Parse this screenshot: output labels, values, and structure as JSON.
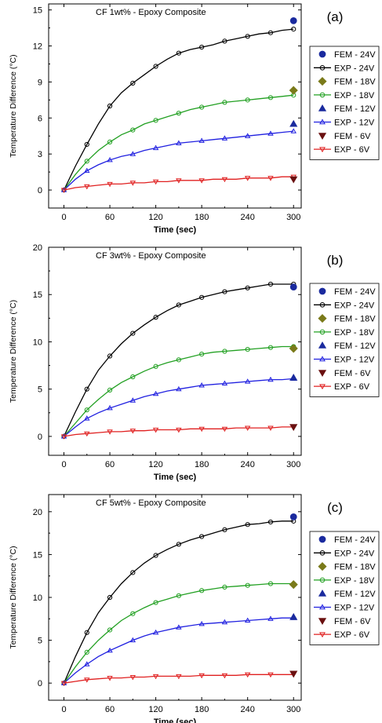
{
  "chart_data": [
    {
      "type": "line",
      "title": "CF 1wt% - Epoxy Composite",
      "panel_label": "(a)",
      "xlabel": "Time (sec)",
      "ylabel": "Temperature Difference (°C)",
      "xlim": [
        -20,
        310
      ],
      "ylim": [
        -1.5,
        15.5
      ],
      "xticks": [
        0,
        60,
        120,
        180,
        240,
        300
      ],
      "yticks": [
        0,
        3,
        6,
        9,
        12,
        15
      ],
      "grid": false,
      "legend_position": "right",
      "series": [
        {
          "name": "EXP - 24V",
          "kind": "exp",
          "color": "#000000",
          "marker": "circle",
          "x": [
            0,
            15,
            30,
            45,
            60,
            75,
            90,
            105,
            120,
            135,
            150,
            165,
            180,
            195,
            210,
            225,
            240,
            255,
            270,
            285,
            300
          ],
          "y": [
            0,
            2.0,
            3.8,
            5.5,
            7.0,
            8.1,
            8.9,
            9.6,
            10.3,
            10.9,
            11.4,
            11.7,
            11.9,
            12.1,
            12.4,
            12.6,
            12.8,
            13.0,
            13.1,
            13.3,
            13.4
          ]
        },
        {
          "name": "EXP - 18V",
          "kind": "exp",
          "color": "#22a022",
          "marker": "circle",
          "x": [
            0,
            15,
            30,
            45,
            60,
            75,
            90,
            105,
            120,
            135,
            150,
            165,
            180,
            195,
            210,
            225,
            240,
            255,
            270,
            285,
            300
          ],
          "y": [
            0,
            1.3,
            2.4,
            3.3,
            4.0,
            4.6,
            5.0,
            5.5,
            5.8,
            6.1,
            6.4,
            6.7,
            6.9,
            7.1,
            7.3,
            7.4,
            7.5,
            7.6,
            7.7,
            7.8,
            7.9
          ]
        },
        {
          "name": "EXP - 12V",
          "kind": "exp",
          "color": "#2020e0",
          "marker": "triangle-up",
          "x": [
            0,
            15,
            30,
            45,
            60,
            75,
            90,
            105,
            120,
            135,
            150,
            165,
            180,
            195,
            210,
            225,
            240,
            255,
            270,
            285,
            300
          ],
          "y": [
            0,
            0.9,
            1.6,
            2.1,
            2.5,
            2.8,
            3.0,
            3.3,
            3.5,
            3.7,
            3.9,
            4.0,
            4.1,
            4.2,
            4.3,
            4.4,
            4.5,
            4.6,
            4.7,
            4.8,
            4.9
          ]
        },
        {
          "name": "EXP -  6V",
          "kind": "exp",
          "color": "#e02020",
          "marker": "triangle-down",
          "x": [
            0,
            15,
            30,
            45,
            60,
            75,
            90,
            105,
            120,
            135,
            150,
            165,
            180,
            195,
            210,
            225,
            240,
            255,
            270,
            285,
            300
          ],
          "y": [
            0,
            0.2,
            0.3,
            0.4,
            0.5,
            0.5,
            0.6,
            0.6,
            0.7,
            0.7,
            0.8,
            0.8,
            0.8,
            0.9,
            0.9,
            0.9,
            1.0,
            1.0,
            1.0,
            1.1,
            1.1
          ]
        },
        {
          "name": "FEM - 24V",
          "kind": "fem",
          "color": "#1a2a9e",
          "marker": "circle",
          "x": [
            300
          ],
          "y": [
            14.1
          ]
        },
        {
          "name": "FEM - 18V",
          "kind": "fem",
          "color": "#7a7a1a",
          "marker": "diamond",
          "x": [
            300
          ],
          "y": [
            8.3
          ]
        },
        {
          "name": "FEM - 12V",
          "kind": "fem",
          "color": "#1a2a9e",
          "marker": "triangle-up",
          "x": [
            300
          ],
          "y": [
            5.5
          ]
        },
        {
          "name": "FEM -  6V",
          "kind": "fem",
          "color": "#6a1010",
          "marker": "triangle-down",
          "x": [
            300
          ],
          "y": [
            0.9
          ]
        }
      ]
    },
    {
      "type": "line",
      "title": "CF 3wt% - Epoxy Composite",
      "panel_label": "(b)",
      "xlabel": "Time (sec)",
      "ylabel": "Temperature Difference (°C)",
      "xlim": [
        -20,
        310
      ],
      "ylim": [
        -2,
        20
      ],
      "xticks": [
        0,
        60,
        120,
        180,
        240,
        300
      ],
      "yticks": [
        0,
        5,
        10,
        15,
        20
      ],
      "grid": false,
      "legend_position": "right",
      "series": [
        {
          "name": "EXP - 24V",
          "kind": "exp",
          "color": "#000000",
          "marker": "circle",
          "x": [
            0,
            15,
            30,
            45,
            60,
            75,
            90,
            105,
            120,
            135,
            150,
            165,
            180,
            195,
            210,
            225,
            240,
            255,
            270,
            285,
            300
          ],
          "y": [
            0,
            2.6,
            5.0,
            7.0,
            8.5,
            9.8,
            10.9,
            11.8,
            12.6,
            13.3,
            13.9,
            14.3,
            14.7,
            15.0,
            15.3,
            15.5,
            15.7,
            15.9,
            16.1,
            16.1,
            16.1
          ]
        },
        {
          "name": "EXP - 18V",
          "kind": "exp",
          "color": "#22a022",
          "marker": "circle",
          "x": [
            0,
            15,
            30,
            45,
            60,
            75,
            90,
            105,
            120,
            135,
            150,
            165,
            180,
            195,
            210,
            225,
            240,
            255,
            270,
            285,
            300
          ],
          "y": [
            0,
            1.4,
            2.8,
            3.9,
            4.9,
            5.7,
            6.3,
            6.9,
            7.4,
            7.8,
            8.1,
            8.4,
            8.7,
            8.9,
            9.0,
            9.1,
            9.2,
            9.3,
            9.4,
            9.5,
            9.5
          ]
        },
        {
          "name": "EXP - 12V",
          "kind": "exp",
          "color": "#2020e0",
          "marker": "triangle-up",
          "x": [
            0,
            15,
            30,
            45,
            60,
            75,
            90,
            105,
            120,
            135,
            150,
            165,
            180,
            195,
            210,
            225,
            240,
            255,
            270,
            285,
            300
          ],
          "y": [
            0,
            1.0,
            1.9,
            2.5,
            3.0,
            3.4,
            3.8,
            4.2,
            4.5,
            4.8,
            5.0,
            5.2,
            5.4,
            5.5,
            5.6,
            5.7,
            5.8,
            5.9,
            6.0,
            6.0,
            6.1
          ]
        },
        {
          "name": "EXP -  6V",
          "kind": "exp",
          "color": "#e02020",
          "marker": "triangle-down",
          "x": [
            0,
            15,
            30,
            45,
            60,
            75,
            90,
            105,
            120,
            135,
            150,
            165,
            180,
            195,
            210,
            225,
            240,
            255,
            270,
            285,
            300
          ],
          "y": [
            0,
            0.2,
            0.3,
            0.4,
            0.5,
            0.5,
            0.6,
            0.6,
            0.7,
            0.7,
            0.7,
            0.8,
            0.8,
            0.8,
            0.8,
            0.9,
            0.9,
            0.9,
            0.9,
            1.0,
            1.0
          ]
        },
        {
          "name": "FEM - 24V",
          "kind": "fem",
          "color": "#1a2a9e",
          "marker": "circle",
          "x": [
            300
          ],
          "y": [
            15.8
          ]
        },
        {
          "name": "FEM - 18V",
          "kind": "fem",
          "color": "#7a7a1a",
          "marker": "diamond",
          "x": [
            300
          ],
          "y": [
            9.3
          ]
        },
        {
          "name": "FEM - 12V",
          "kind": "fem",
          "color": "#1a2a9e",
          "marker": "triangle-up",
          "x": [
            300
          ],
          "y": [
            6.2
          ]
        },
        {
          "name": "FEM -  6V",
          "kind": "fem",
          "color": "#6a1010",
          "marker": "triangle-down",
          "x": [
            300
          ],
          "y": [
            1.0
          ]
        }
      ]
    },
    {
      "type": "line",
      "title": "CF 5wt% - Epoxy Composite",
      "panel_label": "(c)",
      "xlabel": "Time (sec)",
      "ylabel": "Temperature Difference (°C)",
      "xlim": [
        -20,
        310
      ],
      "ylim": [
        -2,
        22
      ],
      "xticks": [
        0,
        60,
        120,
        180,
        240,
        300
      ],
      "yticks": [
        0,
        5,
        10,
        15,
        20
      ],
      "grid": false,
      "legend_position": "right",
      "series": [
        {
          "name": "EXP - 24V",
          "kind": "exp",
          "color": "#000000",
          "marker": "circle",
          "x": [
            0,
            15,
            30,
            45,
            60,
            75,
            90,
            105,
            120,
            135,
            150,
            165,
            180,
            195,
            210,
            225,
            240,
            255,
            270,
            285,
            300
          ],
          "y": [
            0,
            3.1,
            5.9,
            8.2,
            10.0,
            11.6,
            12.9,
            14.0,
            14.9,
            15.6,
            16.2,
            16.7,
            17.1,
            17.5,
            17.9,
            18.2,
            18.5,
            18.6,
            18.8,
            18.9,
            18.9
          ]
        },
        {
          "name": "EXP - 18V",
          "kind": "exp",
          "color": "#22a022",
          "marker": "circle",
          "x": [
            0,
            15,
            30,
            45,
            60,
            75,
            90,
            105,
            120,
            135,
            150,
            165,
            180,
            195,
            210,
            225,
            240,
            255,
            270,
            285,
            300
          ],
          "y": [
            0,
            1.9,
            3.6,
            5.0,
            6.2,
            7.3,
            8.1,
            8.8,
            9.4,
            9.8,
            10.2,
            10.5,
            10.8,
            11.0,
            11.2,
            11.3,
            11.4,
            11.5,
            11.6,
            11.6,
            11.6
          ]
        },
        {
          "name": "EXP - 12V",
          "kind": "exp",
          "color": "#2020e0",
          "marker": "triangle-up",
          "x": [
            0,
            15,
            30,
            45,
            60,
            75,
            90,
            105,
            120,
            135,
            150,
            165,
            180,
            195,
            210,
            225,
            240,
            255,
            270,
            285,
            300
          ],
          "y": [
            0,
            1.2,
            2.2,
            3.1,
            3.8,
            4.4,
            5.0,
            5.5,
            5.9,
            6.2,
            6.5,
            6.7,
            6.9,
            7.0,
            7.1,
            7.2,
            7.3,
            7.4,
            7.5,
            7.6,
            7.6
          ]
        },
        {
          "name": "EXP -  6V",
          "kind": "exp",
          "color": "#e02020",
          "marker": "triangle-down",
          "x": [
            0,
            15,
            30,
            45,
            60,
            75,
            90,
            105,
            120,
            135,
            150,
            165,
            180,
            195,
            210,
            225,
            240,
            255,
            270,
            285,
            300
          ],
          "y": [
            0,
            0.2,
            0.4,
            0.5,
            0.6,
            0.6,
            0.7,
            0.7,
            0.8,
            0.8,
            0.8,
            0.8,
            0.9,
            0.9,
            0.9,
            0.9,
            1.0,
            1.0,
            1.0,
            1.0,
            1.0
          ]
        },
        {
          "name": "FEM - 24V",
          "kind": "fem",
          "color": "#1a2a9e",
          "marker": "circle",
          "x": [
            300
          ],
          "y": [
            19.4
          ]
        },
        {
          "name": "FEM - 18V",
          "kind": "fem",
          "color": "#7a7a1a",
          "marker": "diamond",
          "x": [
            300
          ],
          "y": [
            11.5
          ]
        },
        {
          "name": "FEM - 12V",
          "kind": "fem",
          "color": "#1a2a9e",
          "marker": "triangle-up",
          "x": [
            300
          ],
          "y": [
            7.7
          ]
        },
        {
          "name": "FEM -  6V",
          "kind": "fem",
          "color": "#6a1010",
          "marker": "triangle-down",
          "x": [
            300
          ],
          "y": [
            1.1
          ]
        }
      ]
    }
  ]
}
